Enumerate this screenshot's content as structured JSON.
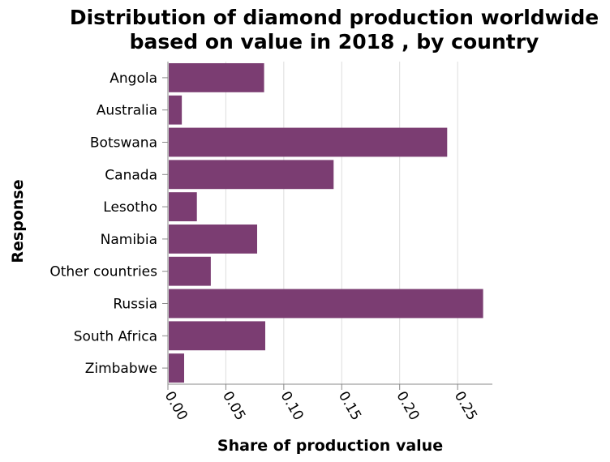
{
  "chart_data": {
    "type": "bar",
    "orientation": "horizontal",
    "title_lines": [
      "Distribution of diamond production worldwide",
      "based on value in 2018 , by country"
    ],
    "xlabel": "Share of production value",
    "ylabel": "Response",
    "categories": [
      "Angola",
      "Australia",
      "Botswana",
      "Canada",
      "Lesotho",
      "Namibia",
      "Other countries",
      "Russia",
      "South Africa",
      "Zimbabwe"
    ],
    "values": [
      0.083,
      0.012,
      0.241,
      0.143,
      0.025,
      0.077,
      0.037,
      0.272,
      0.084,
      0.014
    ],
    "xlim": [
      0,
      0.28
    ],
    "xticks": [
      0,
      0.05,
      0.1,
      0.15,
      0.2,
      0.25
    ],
    "xtick_labels": [
      "0.00",
      "0.05",
      "0.10",
      "0.15",
      "0.20",
      "0.25"
    ],
    "grid": "vertical",
    "bar_color": "#7b3d72"
  }
}
